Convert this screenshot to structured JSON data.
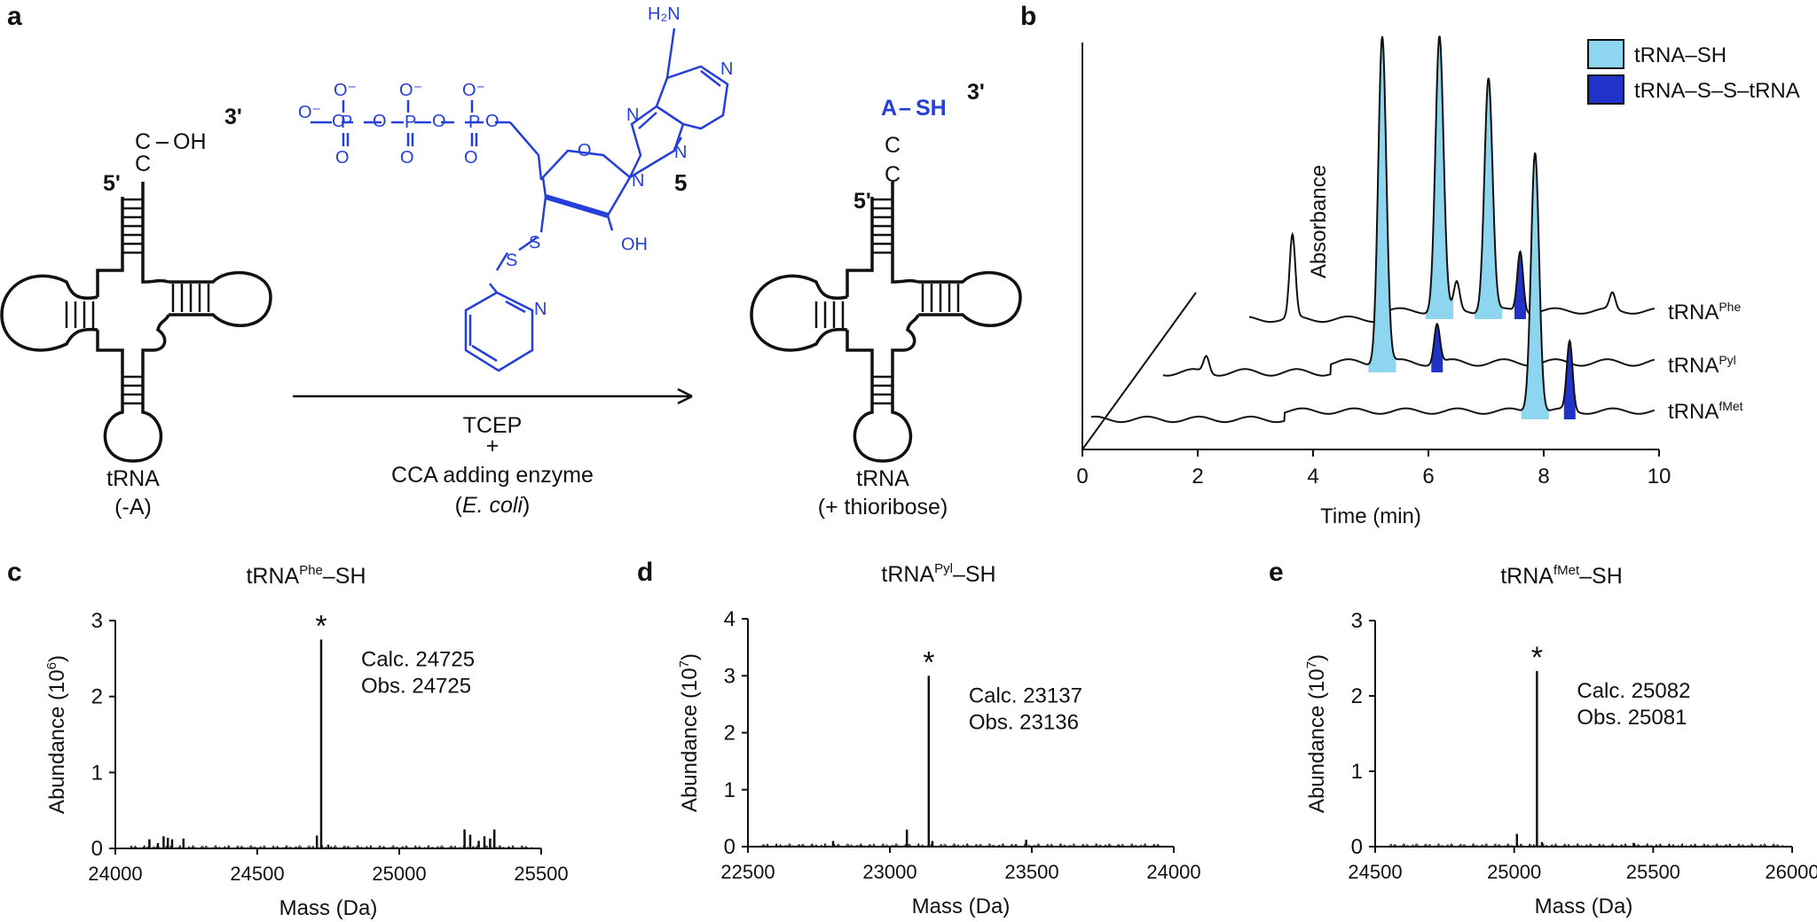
{
  "panels": {
    "a": "a",
    "b": "b",
    "c": "c",
    "d": "d",
    "e": "e"
  },
  "scheme": {
    "three_prime": "3'",
    "five_prime": "5'",
    "c_top": "C",
    "oh": "OH",
    "c_bottom": "C",
    "trna_left_name": "tRNA",
    "trna_left_sub": "(-A)",
    "reagent_1": "TCEP",
    "plus": "+",
    "reagent_2": "CCA adding enzyme",
    "reagent_3_organism": "E. coli",
    "reagent_3_open": "(",
    "reagent_3_close": ")",
    "compound_number": "5",
    "nh2": "H₂N",
    "n": "N",
    "o": "O",
    "o_minus": "O⁻",
    "p": "P",
    "s": "S",
    "oh_sugar": "OH",
    "product_a": "A",
    "product_dash": "–",
    "product_sh": "SH",
    "product_c": "C",
    "trna_right_name": "tRNA",
    "trna_right_sub": "(+ thioribose)"
  },
  "colors": {
    "light_blue": "#8ed5ef",
    "dark_blue": "#1f33c9",
    "chem_blue": "#2540d8",
    "line": "#111111"
  },
  "chart_data": [
    {
      "panel": "b",
      "type": "line",
      "xlabel": "Time (min)",
      "ylabel": "Absorbance",
      "xlim": [
        0,
        10
      ],
      "xticks": [
        0,
        2,
        4,
        6,
        8,
        10
      ],
      "legend": {
        "placement": "top-right",
        "entries": [
          {
            "label": "tRNA–SH",
            "color": "#8ed5ef"
          },
          {
            "label": "tRNA–S–S–tRNA",
            "color": "#1f33c9"
          }
        ]
      },
      "series": [
        {
          "name": "tRNA",
          "sup": "Phe",
          "points": [
            [
              1.95,
              0.3
            ],
            [
              4.5,
              1.0
            ],
            [
              4.8,
              0.1
            ],
            [
              5.35,
              0.85
            ],
            [
              5.9,
              0.22
            ],
            [
              7.5,
              0.06
            ]
          ]
        },
        {
          "name": "tRNA",
          "sup": "Pyl",
          "points": [
            [
              1.35,
              0.05
            ],
            [
              4.4,
              1.0
            ],
            [
              5.35,
              0.12
            ]
          ]
        },
        {
          "name": "tRNA",
          "sup": "fMet",
          "points": [
            [
              7.85,
              0.95
            ],
            [
              8.45,
              0.25
            ]
          ]
        }
      ]
    },
    {
      "panel": "c",
      "type": "bar",
      "title_base": "tRNA",
      "title_sup": "Phe",
      "title_tail": "–SH",
      "xlabel": "Mass (Da)",
      "ylabel_base": "Abundance (10",
      "ylabel_exp": "6",
      "ylabel_close": ")",
      "xlim": [
        24000,
        25500
      ],
      "ylim": [
        0,
        3
      ],
      "xticks": [
        24000,
        24500,
        25000,
        25500
      ],
      "yticks": [
        0,
        1,
        2,
        3
      ],
      "annotation": {
        "star": "*",
        "calc": "Calc. 24725",
        "obs": "Obs. 24725"
      },
      "peaks": [
        [
          24120,
          0.12
        ],
        [
          24150,
          0.07
        ],
        [
          24170,
          0.16
        ],
        [
          24185,
          0.14
        ],
        [
          24200,
          0.12
        ],
        [
          24240,
          0.13
        ],
        [
          24710,
          0.17
        ],
        [
          24725,
          2.75
        ],
        [
          24750,
          0.05
        ],
        [
          25230,
          0.25
        ],
        [
          25250,
          0.18
        ],
        [
          25280,
          0.1
        ],
        [
          25300,
          0.16
        ],
        [
          25320,
          0.13
        ],
        [
          25335,
          0.25
        ]
      ]
    },
    {
      "panel": "d",
      "type": "bar",
      "title_base": "tRNA",
      "title_sup": "Pyl",
      "title_tail": "–SH",
      "xlabel": "Mass (Da)",
      "ylabel_base": "Abundance (10",
      "ylabel_exp": "7",
      "ylabel_close": ")",
      "xlim": [
        22500,
        24000
      ],
      "ylim": [
        0,
        4
      ],
      "xticks": [
        22500,
        23000,
        23500,
        24000
      ],
      "yticks": [
        0,
        1,
        2,
        3,
        4
      ],
      "annotation": {
        "star": "*",
        "calc": "Calc. 23137",
        "obs": "Obs. 23136"
      },
      "peaks": [
        [
          22800,
          0.1
        ],
        [
          23060,
          0.3
        ],
        [
          23137,
          3.0
        ],
        [
          23150,
          0.1
        ],
        [
          23480,
          0.12
        ]
      ]
    },
    {
      "panel": "e",
      "type": "bar",
      "title_base": "tRNA",
      "title_sup": "fMet",
      "title_tail": "–SH",
      "xlabel": "Mass (Da)",
      "ylabel_base": "Abundance (10",
      "ylabel_exp": "7",
      "ylabel_close": ")",
      "xlim": [
        24500,
        26000
      ],
      "ylim": [
        0,
        3
      ],
      "xticks": [
        24500,
        25000,
        25500,
        26000
      ],
      "yticks": [
        0,
        1,
        2,
        3
      ],
      "annotation": {
        "star": "*",
        "calc": "Calc. 25082",
        "obs": "Obs. 25081"
      },
      "peaks": [
        [
          25010,
          0.17
        ],
        [
          25082,
          2.33
        ],
        [
          25100,
          0.06
        ],
        [
          25430,
          0.05
        ]
      ]
    }
  ]
}
